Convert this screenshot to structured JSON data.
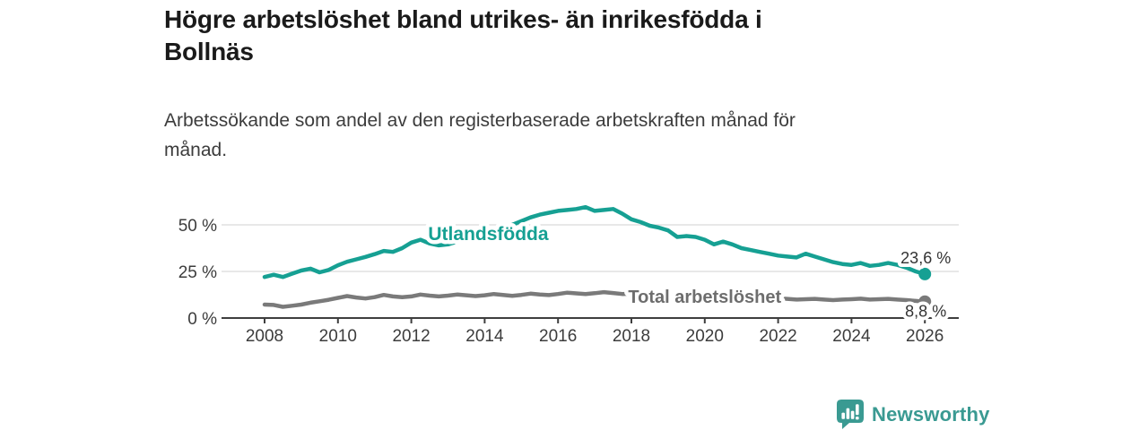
{
  "chart_data": {
    "type": "line",
    "title": "Högre arbetslöshet bland utrikes- än inrikesfödda i\nBollnäs",
    "subtitle": "Arbetssökande som andel av den registerbaserade arbetskraften månad för\nmånad.",
    "x_axis": {
      "ticks": [
        2008,
        2010,
        2012,
        2014,
        2016,
        2018,
        2020,
        2022,
        2024,
        2026
      ],
      "range": [
        2006.8,
        2026.9
      ],
      "grid": false
    },
    "y_axis": {
      "unit": "%",
      "ticks": [
        {
          "value": 0,
          "label": "0 %"
        },
        {
          "value": 25,
          "label": "25 %"
        },
        {
          "value": 50,
          "label": "50 %"
        }
      ],
      "range": [
        0,
        62
      ],
      "grid": true
    },
    "legend": "inline-labels",
    "series": [
      {
        "name": "Utlandsfödda",
        "color": "#16a093",
        "label_color": "#16a093",
        "label": {
          "x": 2014.1,
          "y": 41.8,
          "size": 21
        },
        "end_label": "23,6 %",
        "end_label_position": "above",
        "leader": false,
        "points": [
          [
            2008.0,
            22.0
          ],
          [
            2008.25,
            23.2
          ],
          [
            2008.5,
            22.0
          ],
          [
            2008.75,
            23.8
          ],
          [
            2009.0,
            25.5
          ],
          [
            2009.25,
            26.5
          ],
          [
            2009.5,
            24.5
          ],
          [
            2009.75,
            25.8
          ],
          [
            2010.0,
            28.3
          ],
          [
            2010.25,
            30.2
          ],
          [
            2010.5,
            31.5
          ],
          [
            2010.75,
            32.8
          ],
          [
            2011.0,
            34.3
          ],
          [
            2011.25,
            36.0
          ],
          [
            2011.5,
            35.5
          ],
          [
            2011.75,
            37.5
          ],
          [
            2012.0,
            40.5
          ],
          [
            2012.25,
            42.0
          ],
          [
            2012.5,
            40.0
          ],
          [
            2012.75,
            39.0
          ],
          [
            2013.0,
            39.5
          ],
          [
            2013.25,
            41.0
          ],
          [
            2013.5,
            41.5
          ],
          [
            2013.75,
            42.5
          ],
          [
            2014.0,
            44.0
          ],
          [
            2014.25,
            46.0
          ],
          [
            2014.5,
            47.5
          ],
          [
            2014.75,
            50.0
          ],
          [
            2015.0,
            52.0
          ],
          [
            2015.25,
            54.0
          ],
          [
            2015.5,
            55.5
          ],
          [
            2015.75,
            56.5
          ],
          [
            2016.0,
            57.5
          ],
          [
            2016.25,
            58.0
          ],
          [
            2016.5,
            58.5
          ],
          [
            2016.75,
            59.5
          ],
          [
            2017.0,
            57.5
          ],
          [
            2017.25,
            58.0
          ],
          [
            2017.5,
            58.5
          ],
          [
            2017.75,
            56.0
          ],
          [
            2018.0,
            53.0
          ],
          [
            2018.25,
            51.5
          ],
          [
            2018.5,
            49.5
          ],
          [
            2018.75,
            48.5
          ],
          [
            2019.0,
            47.0
          ],
          [
            2019.25,
            43.5
          ],
          [
            2019.5,
            44.0
          ],
          [
            2019.75,
            43.5
          ],
          [
            2020.0,
            42.0
          ],
          [
            2020.25,
            39.5
          ],
          [
            2020.5,
            41.0
          ],
          [
            2020.75,
            39.5
          ],
          [
            2021.0,
            37.5
          ],
          [
            2021.25,
            36.5
          ],
          [
            2021.5,
            35.5
          ],
          [
            2021.75,
            34.5
          ],
          [
            2022.0,
            33.5
          ],
          [
            2022.25,
            33.0
          ],
          [
            2022.5,
            32.5
          ],
          [
            2022.75,
            34.5
          ],
          [
            2023.0,
            33.0
          ],
          [
            2023.25,
            31.5
          ],
          [
            2023.5,
            30.0
          ],
          [
            2023.75,
            29.0
          ],
          [
            2024.0,
            28.5
          ],
          [
            2024.25,
            29.5
          ],
          [
            2024.5,
            28.0
          ],
          [
            2024.75,
            28.5
          ],
          [
            2025.0,
            29.5
          ],
          [
            2025.25,
            28.5
          ],
          [
            2025.5,
            27.0
          ],
          [
            2025.75,
            25.0
          ],
          [
            2026.0,
            23.6
          ]
        ]
      },
      {
        "name": "Total arbetslöshet",
        "color": "#7a7a7a",
        "label_color": "#6d6d6d",
        "label": {
          "x": 2020.0,
          "y": 8.2,
          "size": 20
        },
        "end_label": "8,8 %",
        "end_label_position": "below",
        "leader": true,
        "points": [
          [
            2008.0,
            7.2
          ],
          [
            2008.25,
            7.0
          ],
          [
            2008.5,
            6.0
          ],
          [
            2008.75,
            6.6
          ],
          [
            2009.0,
            7.2
          ],
          [
            2009.25,
            8.2
          ],
          [
            2009.5,
            9.0
          ],
          [
            2009.75,
            9.8
          ],
          [
            2010.0,
            10.8
          ],
          [
            2010.25,
            11.8
          ],
          [
            2010.5,
            11.0
          ],
          [
            2010.75,
            10.5
          ],
          [
            2011.0,
            11.2
          ],
          [
            2011.25,
            12.4
          ],
          [
            2011.5,
            11.6
          ],
          [
            2011.75,
            11.2
          ],
          [
            2012.0,
            11.6
          ],
          [
            2012.25,
            12.6
          ],
          [
            2012.5,
            12.0
          ],
          [
            2012.75,
            11.6
          ],
          [
            2013.0,
            12.0
          ],
          [
            2013.25,
            12.6
          ],
          [
            2013.5,
            12.2
          ],
          [
            2013.75,
            11.8
          ],
          [
            2014.0,
            12.2
          ],
          [
            2014.25,
            12.9
          ],
          [
            2014.5,
            12.4
          ],
          [
            2014.75,
            11.9
          ],
          [
            2015.0,
            12.4
          ],
          [
            2015.25,
            13.1
          ],
          [
            2015.5,
            12.6
          ],
          [
            2015.75,
            12.3
          ],
          [
            2016.0,
            12.9
          ],
          [
            2016.25,
            13.6
          ],
          [
            2016.5,
            13.2
          ],
          [
            2016.75,
            12.9
          ],
          [
            2017.0,
            13.3
          ],
          [
            2017.25,
            13.9
          ],
          [
            2017.5,
            13.4
          ],
          [
            2017.75,
            12.9
          ],
          [
            2018.0,
            13.1
          ],
          [
            2018.25,
            13.4
          ],
          [
            2018.5,
            12.6
          ],
          [
            2018.75,
            12.1
          ],
          [
            2019.0,
            12.4
          ],
          [
            2019.25,
            12.1
          ],
          [
            2019.5,
            11.6
          ],
          [
            2019.75,
            11.9
          ],
          [
            2020.0,
            12.1
          ],
          [
            2020.25,
            12.6
          ],
          [
            2020.5,
            12.2
          ],
          [
            2020.75,
            11.9
          ],
          [
            2021.0,
            12.1
          ],
          [
            2021.25,
            11.6
          ],
          [
            2021.5,
            11.1
          ],
          [
            2021.75,
            10.9
          ],
          [
            2022.0,
            10.6
          ],
          [
            2022.25,
            10.3
          ],
          [
            2022.5,
            9.9
          ],
          [
            2022.75,
            10.1
          ],
          [
            2023.0,
            10.3
          ],
          [
            2023.25,
            9.9
          ],
          [
            2023.5,
            9.6
          ],
          [
            2023.75,
            9.9
          ],
          [
            2024.0,
            10.1
          ],
          [
            2024.25,
            10.4
          ],
          [
            2024.5,
            9.9
          ],
          [
            2024.75,
            10.1
          ],
          [
            2025.0,
            10.3
          ],
          [
            2025.25,
            9.9
          ],
          [
            2025.5,
            9.6
          ],
          [
            2025.75,
            9.2
          ],
          [
            2026.0,
            8.8
          ]
        ]
      }
    ]
  },
  "footer": {
    "brand": "Newsworthy"
  },
  "colors": {
    "accent_teal": "#16a093",
    "line_gray": "#7a7a7a",
    "text_dark": "#1a1a1a",
    "text_medium": "#3c3c3c",
    "grid": "#d9d9d9",
    "axis": "#3e3e3e",
    "value_label": "#333333",
    "brand_teal": "#3a9a92"
  }
}
